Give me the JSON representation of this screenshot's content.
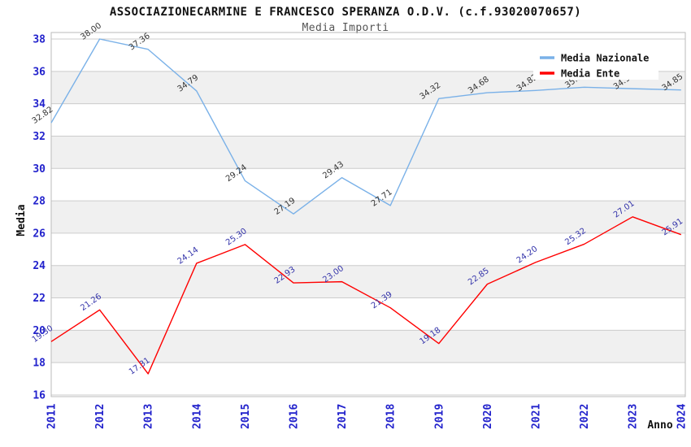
{
  "chart_data": {
    "type": "line",
    "title": "ASSOCIAZIONECARMINE E FRANCESCO SPERANZA O.D.V. (c.f.93020070657)",
    "subtitle": "Media Importi",
    "xlabel": "Anno",
    "ylabel": "Media",
    "x": [
      2011,
      2012,
      2013,
      2014,
      2015,
      2016,
      2017,
      2018,
      2019,
      2020,
      2021,
      2022,
      2023,
      2024
    ],
    "ylim": [
      16,
      38
    ],
    "ytick_step": 2,
    "yticks": [
      16,
      18,
      20,
      22,
      24,
      26,
      28,
      30,
      32,
      34,
      36,
      38
    ],
    "grid": "horizontal-bands",
    "legend_position": "top-right",
    "series": [
      {
        "name": "Media Nazionale",
        "color": "#7AB1E8",
        "label_color": "#333333",
        "values": [
          32.82,
          38.0,
          37.36,
          34.79,
          29.24,
          27.19,
          29.43,
          27.71,
          34.32,
          34.68,
          34.82,
          35.02,
          34.93,
          34.85
        ]
      },
      {
        "name": "Media Ente",
        "color": "#FF0000",
        "label_color": "#3333AA",
        "values": [
          19.3,
          21.26,
          17.31,
          24.14,
          25.3,
          22.93,
          23.0,
          21.39,
          19.18,
          22.85,
          24.2,
          25.32,
          27.01,
          25.91
        ]
      }
    ],
    "colors": {
      "band": "#F0F0F0",
      "grid_line": "#CCCCCC",
      "plot_border": "#BBBBBB",
      "tick_label": "#2222CC",
      "legend_background": "#FFFFFF"
    }
  }
}
